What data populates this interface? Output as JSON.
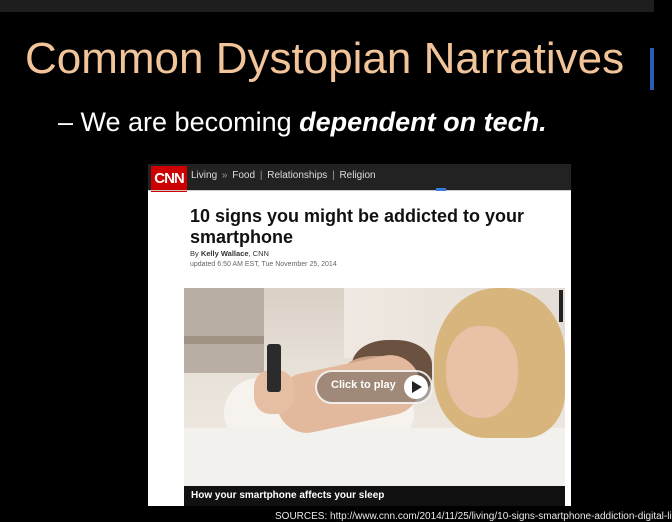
{
  "slide": {
    "title": "Common Dystopian Narratives",
    "bullet_prefix": "– We are becoming ",
    "bullet_emphasis": "dependent on tech.",
    "sources": "SOURCES: http://www.cnn.com/2014/11/25/living/10-signs-smartphone-addiction-digital-li"
  },
  "article": {
    "logo": "CNN",
    "nav": [
      "Living",
      "»",
      "Food",
      "|",
      "Relationships",
      "|",
      "Religion"
    ],
    "headline": "10 signs you might be addicted to your smartphone",
    "byline_prefix": "By ",
    "byline_author": "Kelly Wallace",
    "byline_suffix": ", CNN",
    "updated": "updated 6:50 AM EST, Tue November 25, 2014",
    "video": {
      "play_label": "Click to play",
      "caption": "How your smartphone affects your sleep"
    }
  },
  "colors": {
    "title": "#f2c49a",
    "cnn_red": "#cc0000"
  }
}
